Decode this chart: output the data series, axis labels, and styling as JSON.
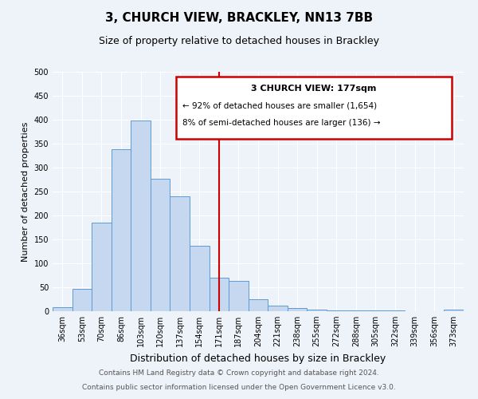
{
  "title": "3, CHURCH VIEW, BRACKLEY, NN13 7BB",
  "subtitle": "Size of property relative to detached houses in Brackley",
  "xlabel": "Distribution of detached houses by size in Brackley",
  "ylabel": "Number of detached properties",
  "bar_labels": [
    "36sqm",
    "53sqm",
    "70sqm",
    "86sqm",
    "103sqm",
    "120sqm",
    "137sqm",
    "154sqm",
    "171sqm",
    "187sqm",
    "204sqm",
    "221sqm",
    "238sqm",
    "255sqm",
    "272sqm",
    "288sqm",
    "305sqm",
    "322sqm",
    "339sqm",
    "356sqm",
    "373sqm"
  ],
  "bar_values": [
    8,
    46,
    185,
    338,
    398,
    276,
    240,
    137,
    70,
    63,
    25,
    11,
    6,
    3,
    2,
    2,
    1,
    1,
    0,
    0,
    3
  ],
  "bar_color": "#c5d8f0",
  "bar_edge_color": "#5b9bd5",
  "vline_x": 8,
  "vline_color": "#cc0000",
  "annotation_title": "3 CHURCH VIEW: 177sqm",
  "annotation_line1": "← 92% of detached houses are smaller (1,654)",
  "annotation_line2": "8% of semi-detached houses are larger (136) →",
  "annotation_box_color": "#cc0000",
  "annotation_text_color": "#000000",
  "ylim": [
    0,
    500
  ],
  "yticks": [
    0,
    50,
    100,
    150,
    200,
    250,
    300,
    350,
    400,
    450,
    500
  ],
  "bg_color": "#eef2f9",
  "plot_bg_color": "#eef2f9",
  "footer_line1": "Contains HM Land Registry data © Crown copyright and database right 2024.",
  "footer_line2": "Contains public sector information licensed under the Open Government Licence v3.0.",
  "title_fontsize": 11,
  "subtitle_fontsize": 9,
  "xlabel_fontsize": 9,
  "ylabel_fontsize": 8,
  "tick_fontsize": 7,
  "footer_fontsize": 6.5,
  "ann_title_fontsize": 8,
  "ann_text_fontsize": 7.5
}
